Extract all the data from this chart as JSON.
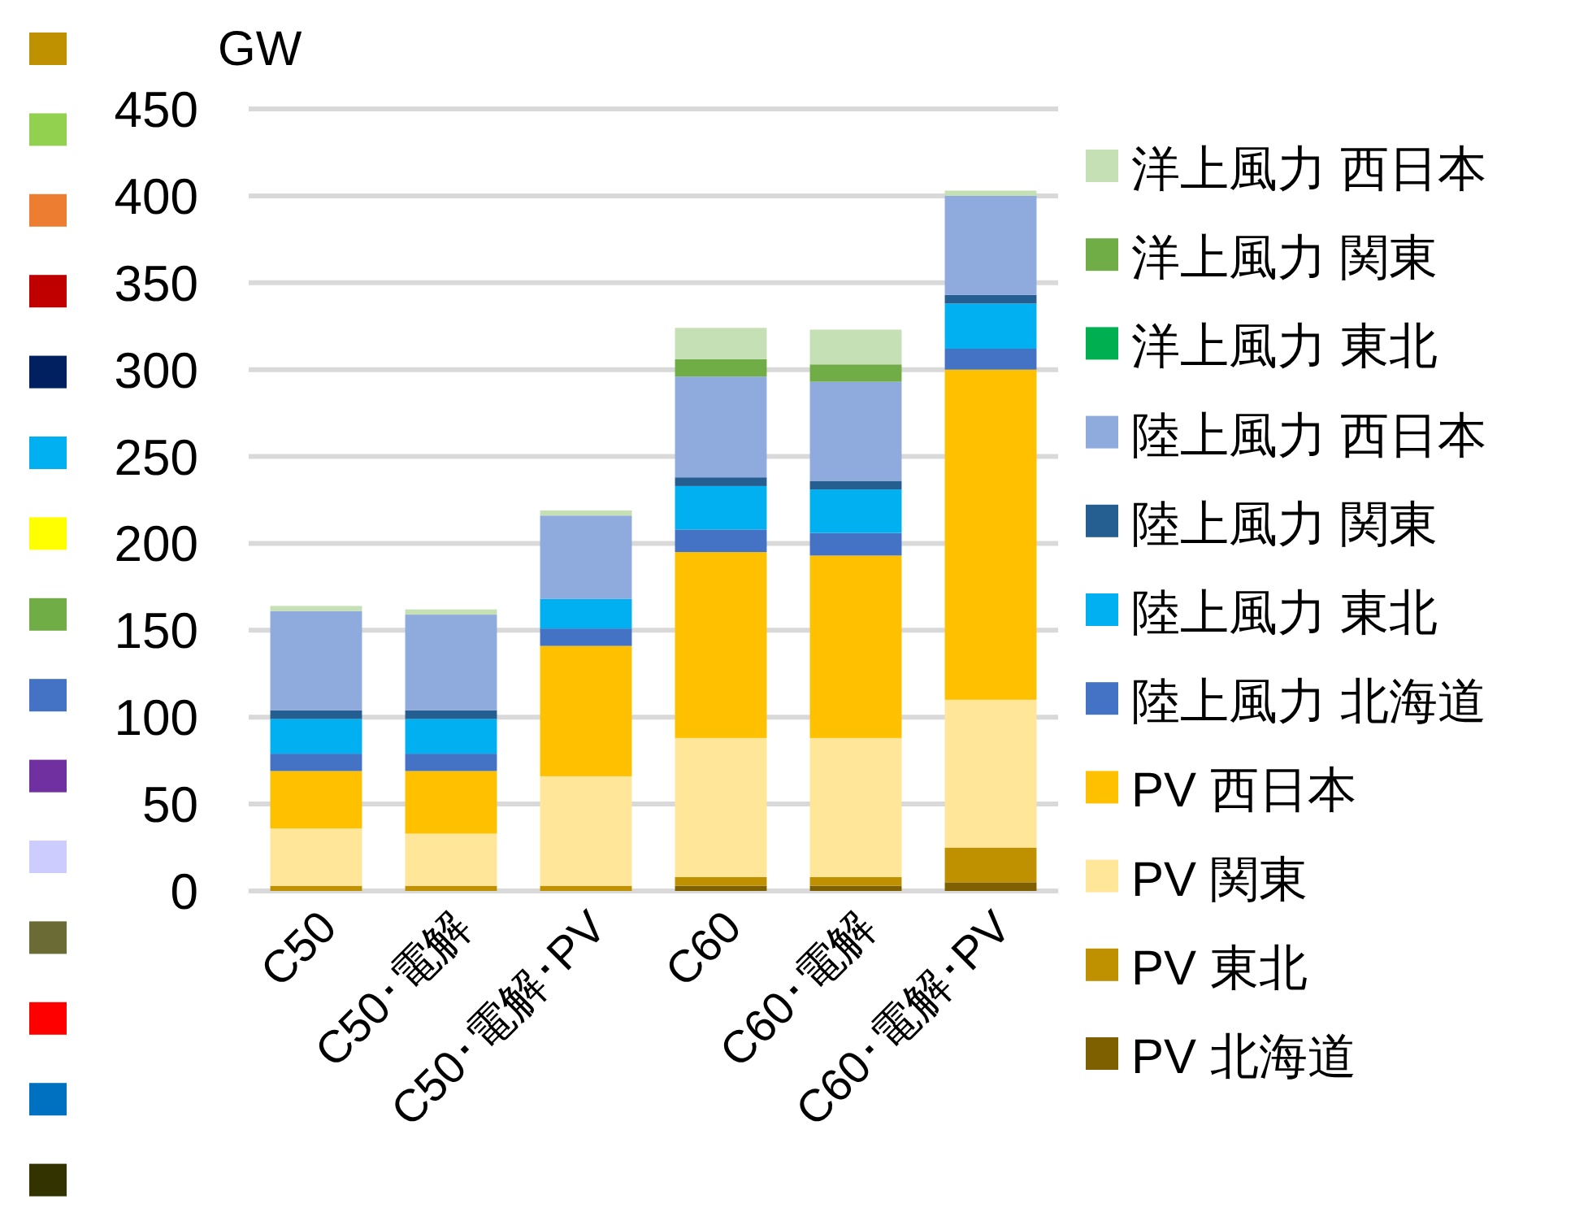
{
  "chart_data": {
    "type": "bar",
    "stacked": true,
    "ylabel": "GW",
    "ylim": [
      0,
      450
    ],
    "yticks": [
      0,
      50,
      100,
      150,
      200,
      250,
      300,
      350,
      400,
      450
    ],
    "grid": "y",
    "legend": "right",
    "categories": [
      "C50",
      "C50･電解",
      "C50･電解･PV",
      "C60",
      "C60･電解",
      "C60･電解･PV"
    ],
    "series": [
      {
        "name": "PV 北海道",
        "color": "#7f6000",
        "values": [
          null,
          null,
          null,
          3,
          3,
          5
        ]
      },
      {
        "name": "PV 東北",
        "color": "#bf9000",
        "values": [
          3,
          3,
          3,
          5,
          5,
          20
        ]
      },
      {
        "name": "PV 関東",
        "color": "#ffe699",
        "values": [
          33,
          30,
          63,
          80,
          80,
          85
        ]
      },
      {
        "name": "PV 西日本",
        "color": "#ffc000",
        "values": [
          33,
          36,
          75,
          107,
          105,
          190
        ]
      },
      {
        "name": "陸上風力 北海道",
        "color": "#4472c4",
        "values": [
          10,
          10,
          10,
          13,
          13,
          12
        ]
      },
      {
        "name": "陸上風力 東北",
        "color": "#00b0f0",
        "values": [
          20,
          20,
          17,
          25,
          25,
          26
        ]
      },
      {
        "name": "陸上風力 関東",
        "color": "#255e91",
        "values": [
          5,
          5,
          null,
          5,
          5,
          5
        ]
      },
      {
        "name": "陸上風力 西日本",
        "color": "#8faadc",
        "values": [
          57,
          55,
          48,
          58,
          57,
          57
        ]
      },
      {
        "name": "洋上風力 東北",
        "color": "#00b050",
        "values": [
          null,
          null,
          null,
          null,
          null,
          null
        ]
      },
      {
        "name": "洋上風力 関東",
        "color": "#70ad47",
        "values": [
          null,
          null,
          null,
          10,
          10,
          null
        ]
      },
      {
        "name": "洋上風力 西日本",
        "color": "#c5e0b4",
        "values": [
          3,
          3,
          3,
          18,
          20,
          3
        ]
      }
    ]
  }
}
